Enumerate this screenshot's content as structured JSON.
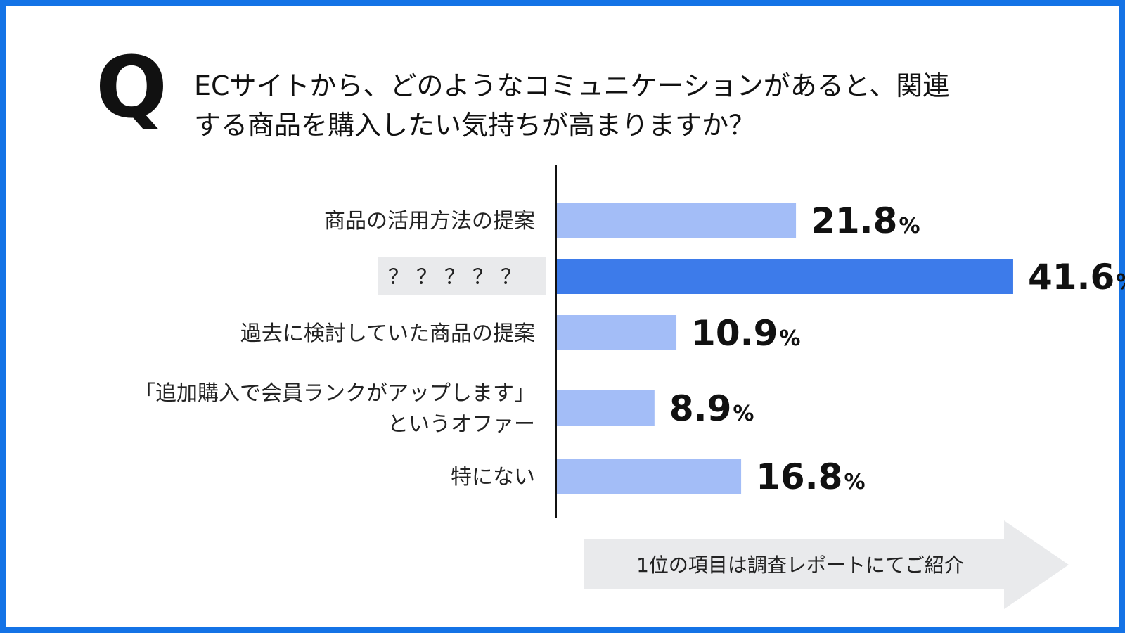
{
  "question": {
    "mark": "Q",
    "line1": "ECサイトから、どのようなコミュニケーションがあると、関連",
    "line2": "する商品を購入したい気持ちが高まりますか？"
  },
  "colors": {
    "frame": "#1473e6",
    "bar": "#a3bdf7",
    "bar_highlight": "#3d7bea",
    "value_highlight": "#1473e6",
    "label_highlight_bg": "#e9eaec",
    "cta_bg": "#e9eaec"
  },
  "chart_data": {
    "type": "bar",
    "orientation": "horizontal",
    "unit": "%",
    "categories": [
      [
        "商品の活用方法の提案"
      ],
      [
        "？？？？？"
      ],
      [
        "過去に検討していた商品の提案"
      ],
      [
        "「追加購入で会員ランクがアップします」",
        "というオファー"
      ],
      [
        "特にない"
      ]
    ],
    "values": [
      21.8,
      41.6,
      10.9,
      8.9,
      16.8
    ],
    "value_labels": [
      "21.8",
      "41.6",
      "10.9",
      "8.9",
      "16.8"
    ],
    "highlight_index": 1,
    "xlim": [
      0,
      45
    ],
    "grid": false
  },
  "cta": {
    "label": "1位の項目は調査レポートにてご紹介"
  }
}
